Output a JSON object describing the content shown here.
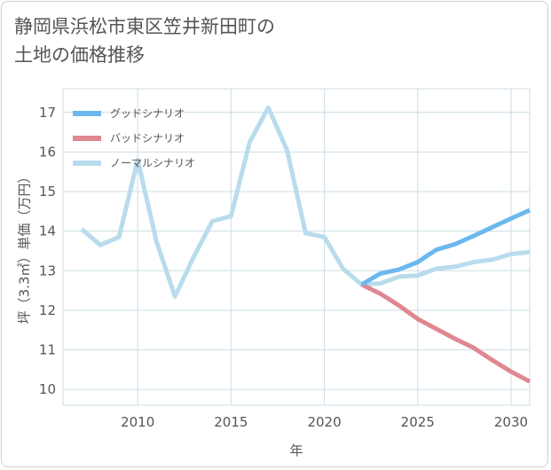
{
  "page": {
    "title_line1": "静岡県浜松市東区笠井新田町の",
    "title_line2": "土地の価格推移"
  },
  "colors": {
    "good": "#6cb8ee",
    "bad": "#e08790",
    "normal": "#b9dcec",
    "grid": "#ccdde6",
    "text": "#555555"
  },
  "chart_data": {
    "type": "line",
    "xlabel": "年",
    "ylabel": "坪（3.3㎡）単価（万円）",
    "xlim": [
      2006,
      2031
    ],
    "ylim": [
      9.6,
      17.6
    ],
    "xticks": [
      2010,
      2015,
      2020,
      2025,
      2030
    ],
    "yticks": [
      10,
      11,
      12,
      13,
      14,
      15,
      16,
      17
    ],
    "legend_position": "top-left",
    "series": [
      {
        "key": "good",
        "name": "グッドシナリオ",
        "x": [
          2022,
          2023,
          2024,
          2025,
          2026,
          2027,
          2028,
          2029,
          2030,
          2031
        ],
        "y": [
          12.65,
          12.93,
          13.03,
          13.22,
          13.53,
          13.67,
          13.88,
          14.1,
          14.32,
          14.53
        ]
      },
      {
        "key": "bad",
        "name": "バッドシナリオ",
        "x": [
          2022,
          2023,
          2024,
          2025,
          2026,
          2027,
          2028,
          2029,
          2030,
          2031
        ],
        "y": [
          12.65,
          12.42,
          12.12,
          11.78,
          11.53,
          11.28,
          11.05,
          10.74,
          10.45,
          10.2
        ]
      },
      {
        "key": "normal",
        "name": "ノーマルシナリオ",
        "x": [
          2007,
          2008,
          2009,
          2010,
          2011,
          2012,
          2013,
          2014,
          2015,
          2016,
          2017,
          2018,
          2019,
          2020,
          2021,
          2022,
          2023,
          2024,
          2025,
          2026,
          2027,
          2028,
          2029,
          2030,
          2031
        ],
        "y": [
          14.05,
          13.65,
          13.85,
          15.8,
          13.75,
          12.35,
          13.35,
          14.25,
          14.38,
          16.25,
          17.12,
          16.05,
          13.95,
          13.85,
          13.05,
          12.65,
          12.68,
          12.85,
          12.88,
          13.05,
          13.1,
          13.22,
          13.28,
          13.42,
          13.47
        ]
      }
    ]
  }
}
